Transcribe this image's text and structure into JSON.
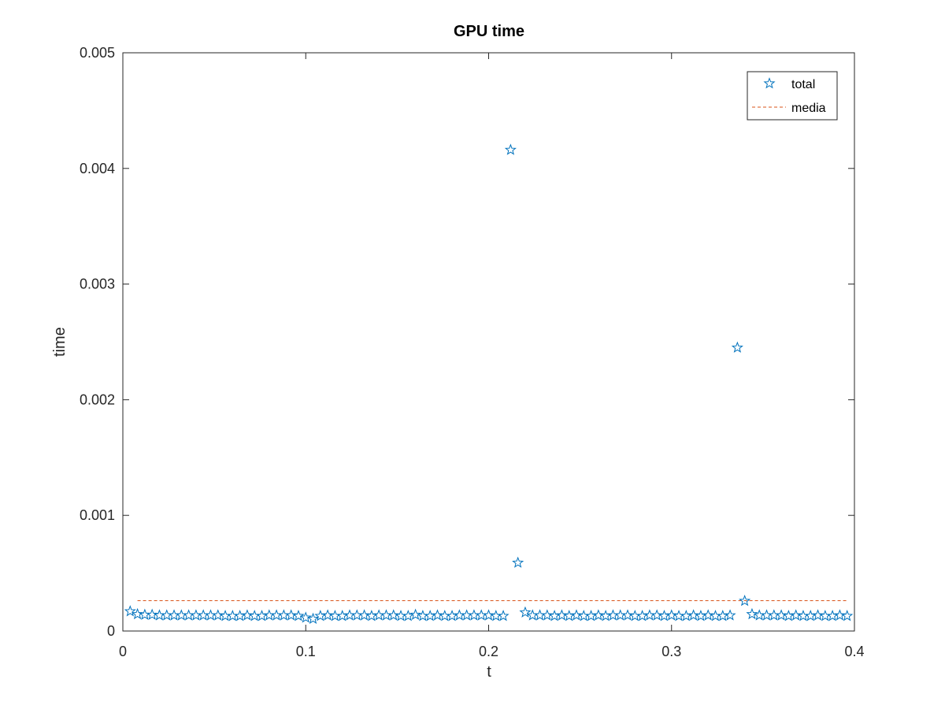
{
  "chart_data": {
    "type": "scatter",
    "title": "GPU time",
    "xlabel": "t",
    "ylabel": "time",
    "xlim": [
      0,
      0.4
    ],
    "ylim": [
      0,
      0.005
    ],
    "xticks": [
      "0",
      "0.1",
      "0.2",
      "0.3",
      "0.4"
    ],
    "yticks": [
      "0",
      "0.001",
      "0.002",
      "0.003",
      "0.004",
      "0.005"
    ],
    "grid": false,
    "legend_position": "top-right",
    "series": [
      {
        "name": "total",
        "marker": "star",
        "color": "#0072BD",
        "x": [
          0.004,
          0.008,
          0.012,
          0.016,
          0.02,
          0.024,
          0.028,
          0.032,
          0.036,
          0.04,
          0.044,
          0.048,
          0.052,
          0.056,
          0.06,
          0.064,
          0.068,
          0.072,
          0.076,
          0.08,
          0.084,
          0.088,
          0.092,
          0.096,
          0.1,
          0.104,
          0.108,
          0.112,
          0.116,
          0.12,
          0.124,
          0.128,
          0.132,
          0.136,
          0.14,
          0.144,
          0.148,
          0.152,
          0.156,
          0.16,
          0.164,
          0.168,
          0.172,
          0.176,
          0.18,
          0.184,
          0.188,
          0.192,
          0.196,
          0.2,
          0.204,
          0.208,
          0.212,
          0.216,
          0.22,
          0.224,
          0.228,
          0.232,
          0.236,
          0.24,
          0.244,
          0.248,
          0.252,
          0.256,
          0.26,
          0.264,
          0.268,
          0.272,
          0.276,
          0.28,
          0.284,
          0.288,
          0.292,
          0.296,
          0.3,
          0.304,
          0.308,
          0.312,
          0.316,
          0.32,
          0.324,
          0.328,
          0.332,
          0.336,
          0.34,
          0.344,
          0.348,
          0.352,
          0.356,
          0.36,
          0.364,
          0.368,
          0.372,
          0.376,
          0.38,
          0.384,
          0.388,
          0.392,
          0.396
        ],
        "y": [
          0.00017,
          0.000145,
          0.00014,
          0.00014,
          0.000135,
          0.000135,
          0.000135,
          0.000135,
          0.000135,
          0.000135,
          0.000135,
          0.000135,
          0.000135,
          0.00013,
          0.00013,
          0.00013,
          0.000135,
          0.00013,
          0.00013,
          0.000135,
          0.000135,
          0.000135,
          0.000135,
          0.00013,
          0.000115,
          0.000105,
          0.00013,
          0.000135,
          0.00013,
          0.00013,
          0.000135,
          0.000135,
          0.000135,
          0.00013,
          0.000135,
          0.000135,
          0.000135,
          0.00013,
          0.00013,
          0.00014,
          0.00013,
          0.00013,
          0.000135,
          0.00013,
          0.00013,
          0.000135,
          0.000135,
          0.000135,
          0.000135,
          0.000135,
          0.00013,
          0.00013,
          0.00416,
          0.00059,
          0.00016,
          0.000135,
          0.000135,
          0.000135,
          0.00013,
          0.000135,
          0.00013,
          0.000135,
          0.00013,
          0.00013,
          0.000135,
          0.00013,
          0.000135,
          0.000135,
          0.000135,
          0.00013,
          0.00013,
          0.000135,
          0.000135,
          0.00013,
          0.000135,
          0.00013,
          0.00013,
          0.000135,
          0.00013,
          0.000135,
          0.00013,
          0.00013,
          0.000135,
          0.00245,
          0.00026,
          0.000145,
          0.000135,
          0.000135,
          0.000135,
          0.000135,
          0.00013,
          0.000135,
          0.00013,
          0.00013,
          0.000135,
          0.00013,
          0.00013,
          0.000135,
          0.00013
        ]
      },
      {
        "name": "media",
        "style": "dashed-line",
        "color": "#D95319",
        "x": [
          0.008,
          0.396
        ],
        "y": [
          0.000262,
          0.000262
        ]
      }
    ]
  }
}
